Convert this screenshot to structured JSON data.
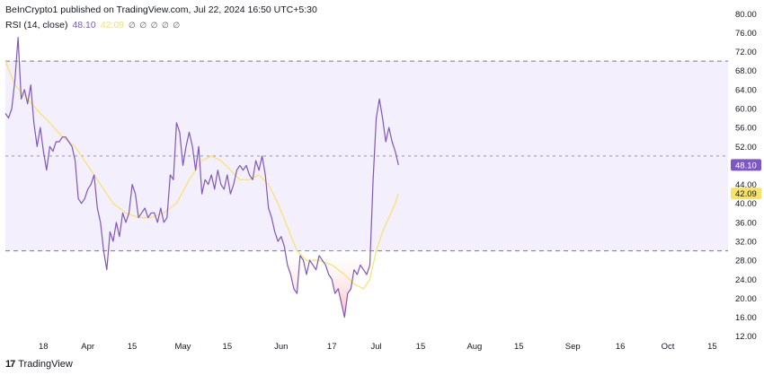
{
  "header": {
    "published_by": "BeInCrypto1 published on TradingView.com, Jul 22, 2024 16:50 UTC+5:30"
  },
  "legend": {
    "label": "RSI (14, close)",
    "rsi_value": "48.10",
    "ma_value": "42.09",
    "hidden_markers": "∅ ∅ ∅ ∅ ∅"
  },
  "footer": {
    "logo_mark": "17",
    "logo_text": "TradingView"
  },
  "colors": {
    "rsi_line": "#7e57c2",
    "ma_line": "#f7e26b",
    "band_fill": "#f3effc",
    "oversold_fill": "#f7b6b6"
  },
  "chart_data": {
    "type": "line",
    "y_ticks": [
      "80.00",
      "76.00",
      "72.00",
      "68.00",
      "64.00",
      "60.00",
      "56.00",
      "52.00",
      "48.00",
      "44.00",
      "40.00",
      "36.00",
      "32.00",
      "28.00",
      "24.00",
      "20.00",
      "16.00",
      "12.00"
    ],
    "ylim": [
      11,
      81
    ],
    "x_ticks": [
      {
        "label": "18",
        "day": 0
      },
      {
        "label": "Apr",
        "day": 14
      },
      {
        "label": "15",
        "day": 28
      },
      {
        "label": "May",
        "day": 44
      },
      {
        "label": "15",
        "day": 58
      },
      {
        "label": "Jun",
        "day": 75
      },
      {
        "label": "17",
        "day": 91
      },
      {
        "label": "Jul",
        "day": 105
      },
      {
        "label": "15",
        "day": 119
      },
      {
        "label": "Aug",
        "day": 136
      },
      {
        "label": "15",
        "day": 150
      },
      {
        "label": "Sep",
        "day": 167
      },
      {
        "label": "16",
        "day": 182
      },
      {
        "label": "Oct",
        "day": 197
      },
      {
        "label": "15",
        "day": 211
      }
    ],
    "xlim": [
      -12,
      216
    ],
    "bands": {
      "upper": 70,
      "middle": 50,
      "lower": 30
    },
    "current": {
      "rsi": "48.10",
      "ma": "42.09"
    },
    "series": [
      {
        "name": "RSI (14, close)",
        "points": [
          [
            -12,
            59
          ],
          [
            -11,
            58
          ],
          [
            -10,
            60
          ],
          [
            -9,
            66
          ],
          [
            -8,
            75
          ],
          [
            -7,
            62
          ],
          [
            -6,
            64
          ],
          [
            -5,
            61
          ],
          [
            -4,
            65
          ],
          [
            -3,
            57
          ],
          [
            -2,
            52
          ],
          [
            -1,
            56
          ],
          [
            0,
            51
          ],
          [
            1,
            47
          ],
          [
            2,
            52
          ],
          [
            3,
            51
          ],
          [
            4,
            53
          ],
          [
            5,
            53
          ],
          [
            6,
            54
          ],
          [
            7,
            54
          ],
          [
            8,
            53
          ],
          [
            9,
            52
          ],
          [
            10,
            49
          ],
          [
            11,
            41
          ],
          [
            12,
            40
          ],
          [
            13,
            41
          ],
          [
            14,
            43
          ],
          [
            15,
            44
          ],
          [
            16,
            46
          ],
          [
            17,
            39
          ],
          [
            18,
            36
          ],
          [
            19,
            30
          ],
          [
            20,
            26
          ],
          [
            21,
            34
          ],
          [
            22,
            32
          ],
          [
            23,
            36
          ],
          [
            24,
            33
          ],
          [
            25,
            38
          ],
          [
            26,
            36
          ],
          [
            27,
            38
          ],
          [
            28,
            44
          ],
          [
            29,
            42
          ],
          [
            30,
            37
          ],
          [
            31,
            38
          ],
          [
            32,
            39
          ],
          [
            33,
            37
          ],
          [
            34,
            38
          ],
          [
            35,
            38
          ],
          [
            36,
            36
          ],
          [
            37,
            39
          ],
          [
            38,
            36
          ],
          [
            39,
            37
          ],
          [
            40,
            46
          ],
          [
            41,
            45
          ],
          [
            42,
            57
          ],
          [
            43,
            55
          ],
          [
            44,
            48
          ],
          [
            45,
            52
          ],
          [
            46,
            55
          ],
          [
            47,
            52
          ],
          [
            48,
            47
          ],
          [
            49,
            52
          ],
          [
            50,
            42
          ],
          [
            51,
            45
          ],
          [
            52,
            44
          ],
          [
            53,
            46
          ],
          [
            54,
            43
          ],
          [
            55,
            47
          ],
          [
            56,
            44
          ],
          [
            57,
            43
          ],
          [
            58,
            46
          ],
          [
            59,
            42
          ],
          [
            60,
            44
          ],
          [
            61,
            47
          ],
          [
            62,
            48
          ],
          [
            63,
            47
          ],
          [
            64,
            48
          ],
          [
            65,
            46
          ],
          [
            66,
            45
          ],
          [
            67,
            49
          ],
          [
            68,
            47
          ],
          [
            69,
            50
          ],
          [
            70,
            46
          ],
          [
            71,
            39
          ],
          [
            72,
            37
          ],
          [
            73,
            34
          ],
          [
            74,
            32
          ],
          [
            75,
            33
          ],
          [
            76,
            31
          ],
          [
            77,
            27
          ],
          [
            78,
            25
          ],
          [
            79,
            22
          ],
          [
            80,
            21
          ],
          [
            81,
            29
          ],
          [
            82,
            28
          ],
          [
            83,
            25
          ],
          [
            84,
            28
          ],
          [
            85,
            27
          ],
          [
            86,
            26
          ],
          [
            87,
            29
          ],
          [
            88,
            28
          ],
          [
            89,
            27
          ],
          [
            90,
            25
          ],
          [
            91,
            24
          ],
          [
            92,
            21
          ],
          [
            93,
            22
          ],
          [
            94,
            19
          ],
          [
            95,
            16
          ],
          [
            96,
            21
          ],
          [
            97,
            22
          ],
          [
            98,
            26
          ],
          [
            99,
            25
          ],
          [
            100,
            27
          ],
          [
            101,
            26
          ],
          [
            102,
            25
          ],
          [
            103,
            27
          ],
          [
            104,
            45
          ],
          [
            105,
            58
          ],
          [
            106,
            62
          ],
          [
            107,
            58
          ],
          [
            108,
            53
          ],
          [
            109,
            56
          ],
          [
            110,
            53
          ],
          [
            111,
            51
          ],
          [
            112,
            48.1
          ]
        ]
      },
      {
        "name": "MA",
        "points": [
          [
            -12,
            70
          ],
          [
            -9,
            65
          ],
          [
            -5,
            62
          ],
          [
            -1,
            59
          ],
          [
            2,
            57
          ],
          [
            6,
            54
          ],
          [
            10,
            52
          ],
          [
            14,
            48
          ],
          [
            18,
            44
          ],
          [
            22,
            40
          ],
          [
            26,
            38
          ],
          [
            30,
            37
          ],
          [
            34,
            37
          ],
          [
            38,
            38
          ],
          [
            42,
            40
          ],
          [
            46,
            45
          ],
          [
            50,
            49
          ],
          [
            53,
            50
          ],
          [
            56,
            49
          ],
          [
            59,
            47
          ],
          [
            62,
            45
          ],
          [
            65,
            45
          ],
          [
            68,
            46
          ],
          [
            71,
            44
          ],
          [
            74,
            40
          ],
          [
            77,
            35
          ],
          [
            80,
            30
          ],
          [
            83,
            28
          ],
          [
            87,
            28
          ],
          [
            91,
            27
          ],
          [
            95,
            25
          ],
          [
            98,
            23
          ],
          [
            101,
            22
          ],
          [
            103,
            24
          ],
          [
            105,
            30
          ],
          [
            107,
            34
          ],
          [
            109,
            37
          ],
          [
            111,
            40
          ],
          [
            112,
            42.09
          ]
        ]
      }
    ],
    "oversold_fill_segment": {
      "from_day": 77,
      "to_day": 103,
      "series": "RSI (14, close)"
    }
  }
}
